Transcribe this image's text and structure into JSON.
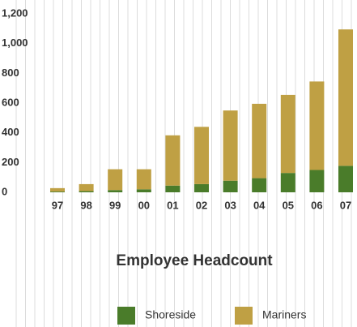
{
  "chart_data": {
    "type": "bar",
    "stacked": true,
    "title": "Employee Headcount",
    "categories": [
      "97",
      "98",
      "99",
      "00",
      "01",
      "02",
      "03",
      "04",
      "05",
      "06",
      "07"
    ],
    "series": [
      {
        "name": "Shoreside",
        "color": "#4a7c2a",
        "values": [
          5,
          8,
          15,
          20,
          45,
          55,
          78,
          95,
          130,
          150,
          178
        ]
      },
      {
        "name": "Mariners",
        "color": "#bfa044",
        "values": [
          23,
          47,
          140,
          135,
          338,
          385,
          472,
          500,
          525,
          595,
          917
        ]
      }
    ],
    "ylim": [
      0,
      1200
    ],
    "yticks": [
      0,
      200,
      400,
      600,
      800,
      {
        "value": 1000,
        "label": "1,000"
      },
      {
        "value": 1200,
        "label": "1,200"
      }
    ]
  }
}
